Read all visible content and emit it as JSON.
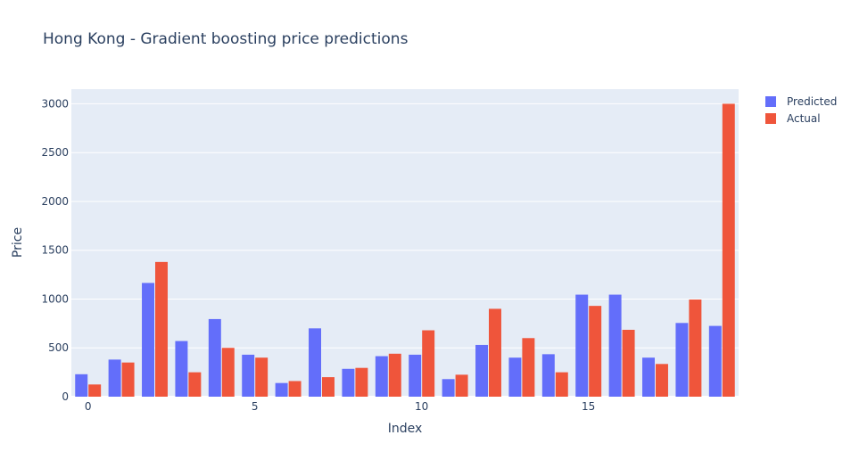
{
  "chart_data": {
    "type": "bar",
    "title": "Hong Kong - Gradient boosting price predictions",
    "xlabel": "Index",
    "ylabel": "Price",
    "x": [
      0,
      1,
      2,
      3,
      4,
      5,
      6,
      7,
      8,
      9,
      10,
      11,
      12,
      13,
      14,
      15,
      16,
      17,
      18,
      19
    ],
    "x_ticks": [
      0,
      5,
      10,
      15
    ],
    "ylim": [
      0,
      3150
    ],
    "y_ticks": [
      0,
      500,
      1000,
      1500,
      2000,
      2500,
      3000
    ],
    "grid": true,
    "legend_position": "top-right",
    "series": [
      {
        "name": "Predicted",
        "color": "#636efa",
        "values": [
          230,
          380,
          1165,
          570,
          795,
          430,
          140,
          700,
          285,
          415,
          430,
          180,
          530,
          400,
          435,
          1045,
          1045,
          400,
          755,
          725
        ]
      },
      {
        "name": "Actual",
        "color": "#ef553b",
        "values": [
          125,
          350,
          1380,
          250,
          500,
          400,
          160,
          200,
          295,
          440,
          680,
          225,
          900,
          600,
          250,
          930,
          685,
          335,
          995,
          3000
        ]
      }
    ]
  },
  "colors": {
    "plot_background": "#e5ecf6",
    "gridline": "#ffffff",
    "text": "#2a3f5f"
  }
}
